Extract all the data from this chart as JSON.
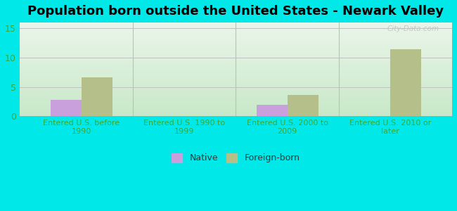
{
  "title": "Population born outside the United States - Newark Valley",
  "categories": [
    "Entered U.S. before\n1990",
    "Entered U.S. 1990 to\n1999",
    "Entered U.S. 2000 to\n2009",
    "Entered U.S. 2010 or\nlater"
  ],
  "native_values": [
    2.8,
    0,
    2.0,
    0
  ],
  "foreign_values": [
    6.7,
    0,
    3.6,
    11.4
  ],
  "native_color": "#c9a0dc",
  "foreign_color": "#b5bf8a",
  "background_outer": "#00e8e8",
  "bg_top": "#eaf5ea",
  "bg_bottom": "#c8e8c8",
  "ylim": [
    0,
    16
  ],
  "yticks": [
    0,
    5,
    10,
    15
  ],
  "bar_width": 0.3,
  "legend_labels": [
    "Native",
    "Foreign-born"
  ],
  "watermark": "City-Data.com",
  "title_fontsize": 13,
  "tick_label_color": "#3aaa3a",
  "ytick_label_color": "#3aaa3a",
  "grid_color": "#c0c0c0",
  "divider_color": "#b0c8b0"
}
